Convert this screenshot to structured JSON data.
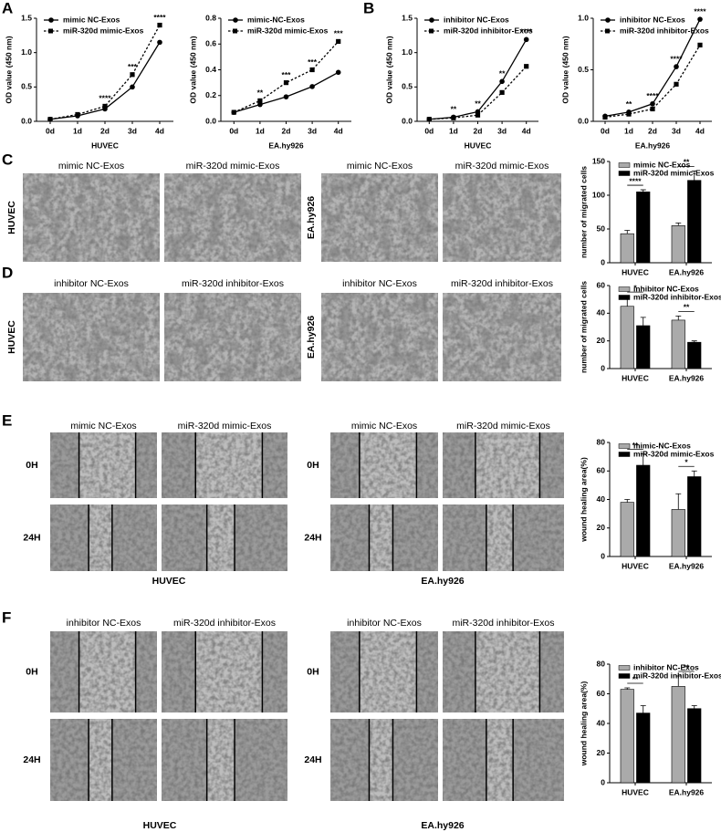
{
  "panel_labels": [
    "A",
    "B",
    "C",
    "D",
    "E",
    "F"
  ],
  "C": {
    "columns": [
      "mimic NC-Exos",
      "miR-320d mimic-Exos",
      "mimic NC-Exos",
      "miR-320d mimic-Exos"
    ],
    "rows": [
      "HUVEC",
      "EA.hy926"
    ]
  },
  "D": {
    "columns": [
      "inhibitor NC-Exos",
      "miR-320d inhibitor-Exos",
      "inhibitor NC-Exos",
      "miR-320d inhibitor-Exos"
    ],
    "rows": [
      "HUVEC",
      "EA.hy926"
    ]
  },
  "E": {
    "columns": [
      "mimic NC-Exos",
      "miR-320d mimic-Exos",
      "mimic NC-Exos",
      "miR-320d mimic-Exos"
    ],
    "rows": [
      "0H",
      "24H",
      "0H",
      "24H"
    ],
    "groups": [
      "HUVEC",
      "EA.hy926"
    ]
  },
  "F": {
    "columns": [
      "inhibitor NC-Exos",
      "miR-320d inhibitor-Exos",
      "inhibitor NC-Exos",
      "miR-320d inhibitor-Exos"
    ],
    "rows": [
      "0H",
      "24H",
      "0H",
      "24H"
    ],
    "groups": [
      "HUVEC",
      "EA.hy926"
    ]
  },
  "chart_data": [
    {
      "type": "line",
      "x_label": "HUVEC",
      "y_label": "OD value (450 nm)",
      "categories": [
        "0d",
        "1d",
        "2d",
        "3d",
        "4d"
      ],
      "ylim": [
        0,
        1.5
      ],
      "yticks": [
        {
          "value": 0,
          "label": "0.0"
        },
        0.5,
        {
          "value": 1,
          "label": "1.0"
        },
        1.5
      ],
      "series": [
        {
          "name": "mimic NC-Exos",
          "color": "#000000",
          "values": [
            0.03,
            0.08,
            0.18,
            0.5,
            1.15
          ]
        },
        {
          "name": "miR-320d mimic-Exos",
          "color": "#000000",
          "values": [
            0.03,
            0.1,
            0.22,
            0.68,
            1.4
          ]
        }
      ],
      "annotations": [
        null,
        null,
        "****",
        "***",
        "****"
      ]
    },
    {
      "type": "line",
      "x_label": "EA.hy926",
      "y_label": "OD value (450 nm)",
      "categories": [
        "0d",
        "1d",
        "2d",
        "3d",
        "4d"
      ],
      "ylim": [
        0,
        0.8
      ],
      "yticks": [
        {
          "value": 0,
          "label": "0.0"
        },
        0.2,
        0.4,
        0.6,
        0.8
      ],
      "series": [
        {
          "name": "mimic-NC-Exos",
          "color": "#000000",
          "values": [
            0.07,
            0.13,
            0.19,
            0.27,
            0.38
          ]
        },
        {
          "name": "miR-320d mimic-Exos",
          "color": "#000000",
          "values": [
            0.07,
            0.16,
            0.3,
            0.4,
            0.62
          ]
        }
      ],
      "annotations": [
        null,
        "**",
        "***",
        "***",
        "***"
      ]
    },
    {
      "type": "line",
      "x_label": "HUVEC",
      "y_label": "OD value (450 nm)",
      "categories": [
        "0d",
        "1d",
        "2d",
        "3d",
        "4d"
      ],
      "ylim": [
        0,
        1.5
      ],
      "yticks": [
        {
          "value": 0,
          "label": "0.0"
        },
        0.5,
        {
          "value": 1,
          "label": "1.0"
        },
        1.5
      ],
      "series": [
        {
          "name": "inhibitor NC-Exos",
          "color": "#000000",
          "values": [
            0.03,
            0.06,
            0.14,
            0.58,
            1.19
          ]
        },
        {
          "name": "miR-320d inhibitor-Exos",
          "color": "#000000",
          "values": [
            0.03,
            0.05,
            0.09,
            0.42,
            0.8
          ]
        }
      ],
      "annotations": [
        null,
        "**",
        "**",
        "**",
        "****"
      ]
    },
    {
      "type": "line",
      "x_label": "EA.hy926",
      "y_label": "OD value (450 nm)",
      "categories": [
        "0d",
        "1d",
        "2d",
        "3d",
        "4d"
      ],
      "ylim": [
        0,
        1
      ],
      "yticks": [
        {
          "value": 0,
          "label": "0.0"
        },
        0.5,
        {
          "value": 1,
          "label": "1.0"
        }
      ],
      "series": [
        {
          "name": "inhibitor NC-Exos",
          "color": "#000000",
          "values": [
            0.05,
            0.09,
            0.17,
            0.53,
            0.99
          ]
        },
        {
          "name": "miR-320d inhibitor-Exos",
          "color": "#000000",
          "values": [
            0.04,
            0.07,
            0.12,
            0.36,
            0.74
          ]
        }
      ],
      "annotations": [
        null,
        "**",
        "****",
        "****",
        "****"
      ]
    },
    {
      "type": "bar",
      "y_label": "number of migrated cells",
      "categories": [
        "HUVEC",
        "EA.hy926"
      ],
      "ylim": [
        0,
        150
      ],
      "yticks": [
        0,
        50,
        100,
        150
      ],
      "series": [
        {
          "name": "mimic NC-Exos",
          "color": "#aaaaaa",
          "values": [
            43,
            55
          ],
          "errors": [
            5,
            4
          ]
        },
        {
          "name": "miR-320d mimic-Exos",
          "color": "#000000",
          "values": [
            105,
            122
          ],
          "errors": [
            3,
            14
          ]
        }
      ],
      "annotations": [
        "****",
        "**"
      ]
    },
    {
      "type": "bar",
      "y_label": "number of migrated cells",
      "categories": [
        "HUVEC",
        "EA.hy926"
      ],
      "ylim": [
        0,
        60
      ],
      "yticks": [
        0,
        20,
        40,
        60
      ],
      "series": [
        {
          "name": "inhibitor NC-Exos",
          "color": "#aaaaaa",
          "values": [
            45,
            35
          ],
          "errors": [
            7,
            3
          ]
        },
        {
          "name": "miR-320d inhibitor-Exos",
          "color": "#000000",
          "values": [
            31,
            19
          ],
          "errors": [
            6,
            1
          ]
        }
      ],
      "annotations": [
        "*",
        "**"
      ]
    },
    {
      "type": "bar",
      "y_label": "wound healing area(%)",
      "categories": [
        "HUVEC",
        "EA.hy926"
      ],
      "ylim": [
        0,
        80
      ],
      "yticks": [
        0,
        20,
        40,
        60,
        80
      ],
      "series": [
        {
          "name": "mimic-NC-Exos",
          "color": "#aaaaaa",
          "values": [
            38,
            33
          ],
          "errors": [
            2,
            11
          ]
        },
        {
          "name": "miR-320d mimic-Exos",
          "color": "#000000",
          "values": [
            64,
            56
          ],
          "errors": [
            8,
            4
          ]
        }
      ],
      "annotations": [
        "**",
        "*"
      ]
    },
    {
      "type": "bar",
      "y_label": "wound healing area(%)",
      "categories": [
        "HUVEC",
        "EA.hy926"
      ],
      "ylim": [
        0,
        80
      ],
      "yticks": [
        0,
        20,
        40,
        60,
        80
      ],
      "series": [
        {
          "name": "inhibitor NC-Exos",
          "color": "#aaaaaa",
          "values": [
            63,
            65
          ],
          "errors": [
            1,
            7
          ]
        },
        {
          "name": "miR-320d inhibitor-Exos",
          "color": "#000000",
          "values": [
            47,
            50
          ],
          "errors": [
            5,
            2
          ]
        }
      ],
      "annotations": [
        "**",
        "**"
      ]
    }
  ]
}
